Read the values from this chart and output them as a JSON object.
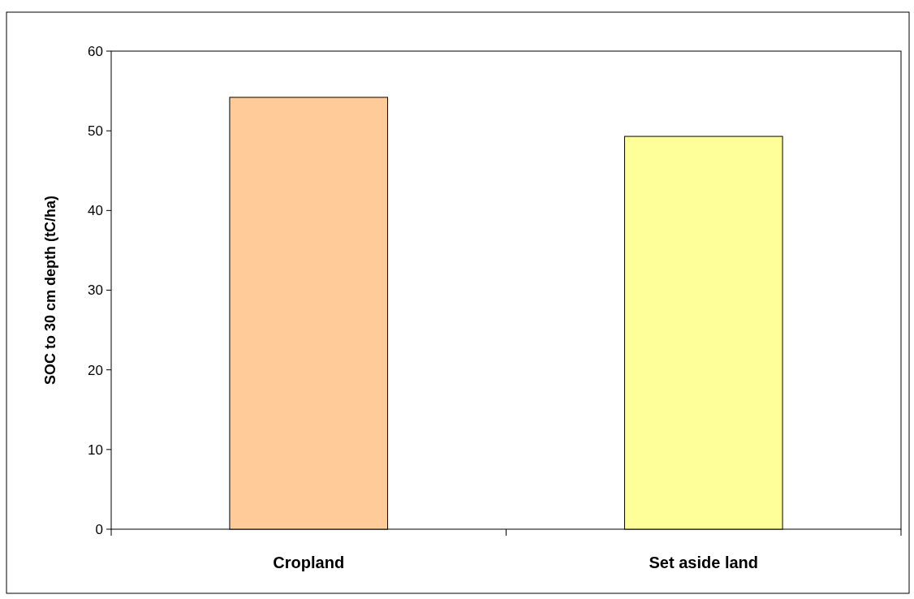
{
  "chart_data": {
    "type": "bar",
    "ylabel": "SOC to 30 cm depth (tC/ha)",
    "categories": [
      "Cropland",
      "Set aside land"
    ],
    "values": [
      54.2,
      49.3
    ],
    "colors": [
      "#ffcc99",
      "#ffff99"
    ],
    "ylim": [
      0,
      60
    ],
    "yticks": [
      0,
      10,
      20,
      30,
      40,
      50,
      60
    ]
  }
}
